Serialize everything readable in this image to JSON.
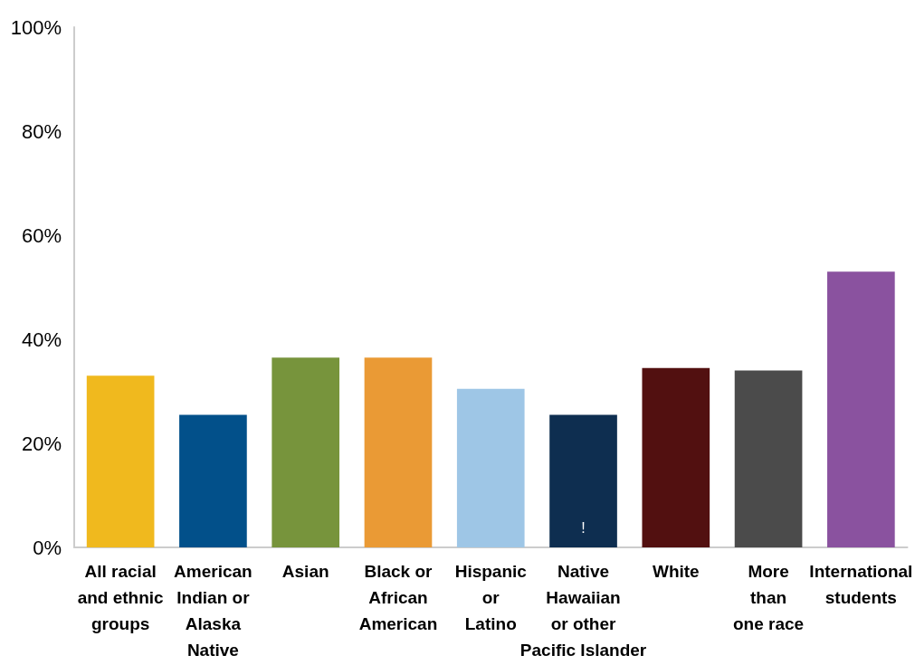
{
  "chart_data": {
    "type": "bar",
    "categories": [
      "All racial\nand ethnic\ngroups",
      "American\nIndian or\nAlaska\nNative",
      "Asian",
      "Black or\nAfrican\nAmerican",
      "Hispanic\nor\nLatino",
      "Native\nHawaiian\nor other\nPacific Islander",
      "White",
      "More\nthan\none race",
      "International\nstudents"
    ],
    "values": [
      33,
      25.5,
      36.5,
      36.5,
      30.5,
      25.5,
      34.5,
      34,
      53
    ],
    "colors": [
      "#f0b91e",
      "#02508a",
      "#77943c",
      "#ea9a35",
      "#9ec6e6",
      "#0e2e50",
      "#521010",
      "#4b4b4b",
      "#8a529f"
    ],
    "annotations": [
      "!"
    ],
    "ylim": [
      0,
      100
    ],
    "yticks": [
      {
        "value": 0,
        "label": "0%"
      },
      {
        "value": 20,
        "label": "20%"
      },
      {
        "value": 40,
        "label": "40%"
      },
      {
        "value": 60,
        "label": "60%"
      },
      {
        "value": 80,
        "label": "80%"
      },
      {
        "value": 100,
        "label": "100%"
      }
    ],
    "grid": false
  }
}
